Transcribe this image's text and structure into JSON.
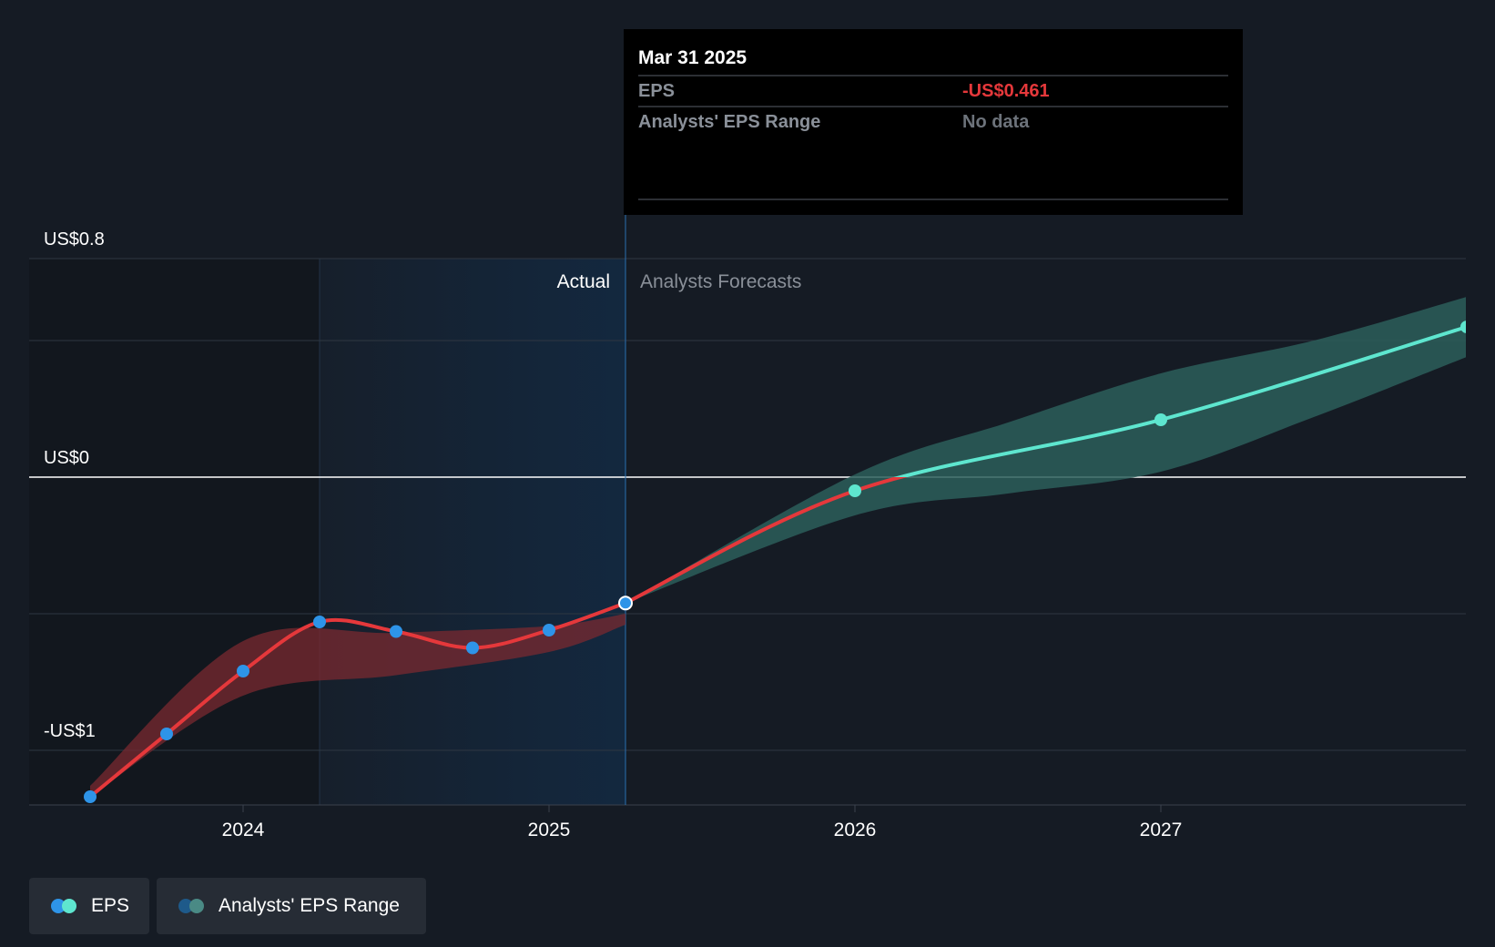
{
  "chart_data": {
    "type": "line",
    "x_ticks": [
      "2024",
      "2025",
      "2026",
      "2027"
    ],
    "y_ticks": [
      {
        "label": "US$0.8",
        "value": 0.8
      },
      {
        "label": "US$0",
        "value": 0
      },
      {
        "label": "-US$1",
        "value": -1
      }
    ],
    "ylim": [
      -1.2,
      0.8
    ],
    "xlim": [
      2023.3,
      2027.99
    ],
    "region_labels": {
      "actual": "Actual",
      "forecast": "Analysts Forecasts"
    },
    "series": [
      {
        "name": "EPS",
        "points": [
          {
            "x": 2023.5,
            "y": -1.17
          },
          {
            "x": 2023.75,
            "y": -0.94
          },
          {
            "x": 2024.0,
            "y": -0.71
          },
          {
            "x": 2024.25,
            "y": -0.53
          },
          {
            "x": 2024.5,
            "y": -0.565
          },
          {
            "x": 2024.75,
            "y": -0.625
          },
          {
            "x": 2025.0,
            "y": -0.56
          },
          {
            "x": 2025.25,
            "y": -0.461
          }
        ]
      },
      {
        "name": "EPS forecast",
        "points": [
          {
            "x": 2025.25,
            "y": -0.461
          },
          {
            "x": 2026.0,
            "y": -0.05
          },
          {
            "x": 2027.0,
            "y": 0.21
          },
          {
            "x": 2028.0,
            "y": 0.55
          }
        ]
      }
    ],
    "range_band_past": {
      "upper": [
        [
          2023.5,
          -1.13
        ],
        [
          2024.0,
          -0.6
        ],
        [
          2024.5,
          -0.57
        ],
        [
          2025.0,
          -0.545
        ],
        [
          2025.25,
          -0.5
        ]
      ],
      "lower": [
        [
          2023.5,
          -1.17
        ],
        [
          2024.0,
          -0.8
        ],
        [
          2024.5,
          -0.725
        ],
        [
          2025.0,
          -0.64
        ],
        [
          2025.25,
          -0.54
        ]
      ]
    },
    "range_band_forecast": {
      "upper": [
        [
          2025.25,
          -0.461
        ],
        [
          2026.0,
          0.01
        ],
        [
          2026.5,
          0.2
        ],
        [
          2027.0,
          0.38
        ],
        [
          2027.5,
          0.5
        ],
        [
          2028.0,
          0.66
        ]
      ],
      "lower": [
        [
          2025.25,
          -0.461
        ],
        [
          2026.0,
          -0.14
        ],
        [
          2026.5,
          -0.06
        ],
        [
          2027.0,
          0.02
        ],
        [
          2027.5,
          0.22
        ],
        [
          2028.0,
          0.44
        ]
      ]
    },
    "tooltip": {
      "date": "Mar 31 2025",
      "rows": [
        {
          "label": "EPS",
          "value": "-US$0.461"
        },
        {
          "label": "Analysts' EPS Range",
          "value": "No data"
        }
      ]
    },
    "legend": [
      "EPS",
      "Analysts' EPS Range"
    ],
    "colors": {
      "background": "#151b24",
      "eps_past": "#e5383b",
      "eps_forecast": "#5ee6cf",
      "point": "#2e94e8",
      "range_past": "#7a2a30",
      "range_forecast": "#2c5e5a",
      "highlight": "#13283f",
      "tooltip_value": "#e5383b"
    }
  }
}
